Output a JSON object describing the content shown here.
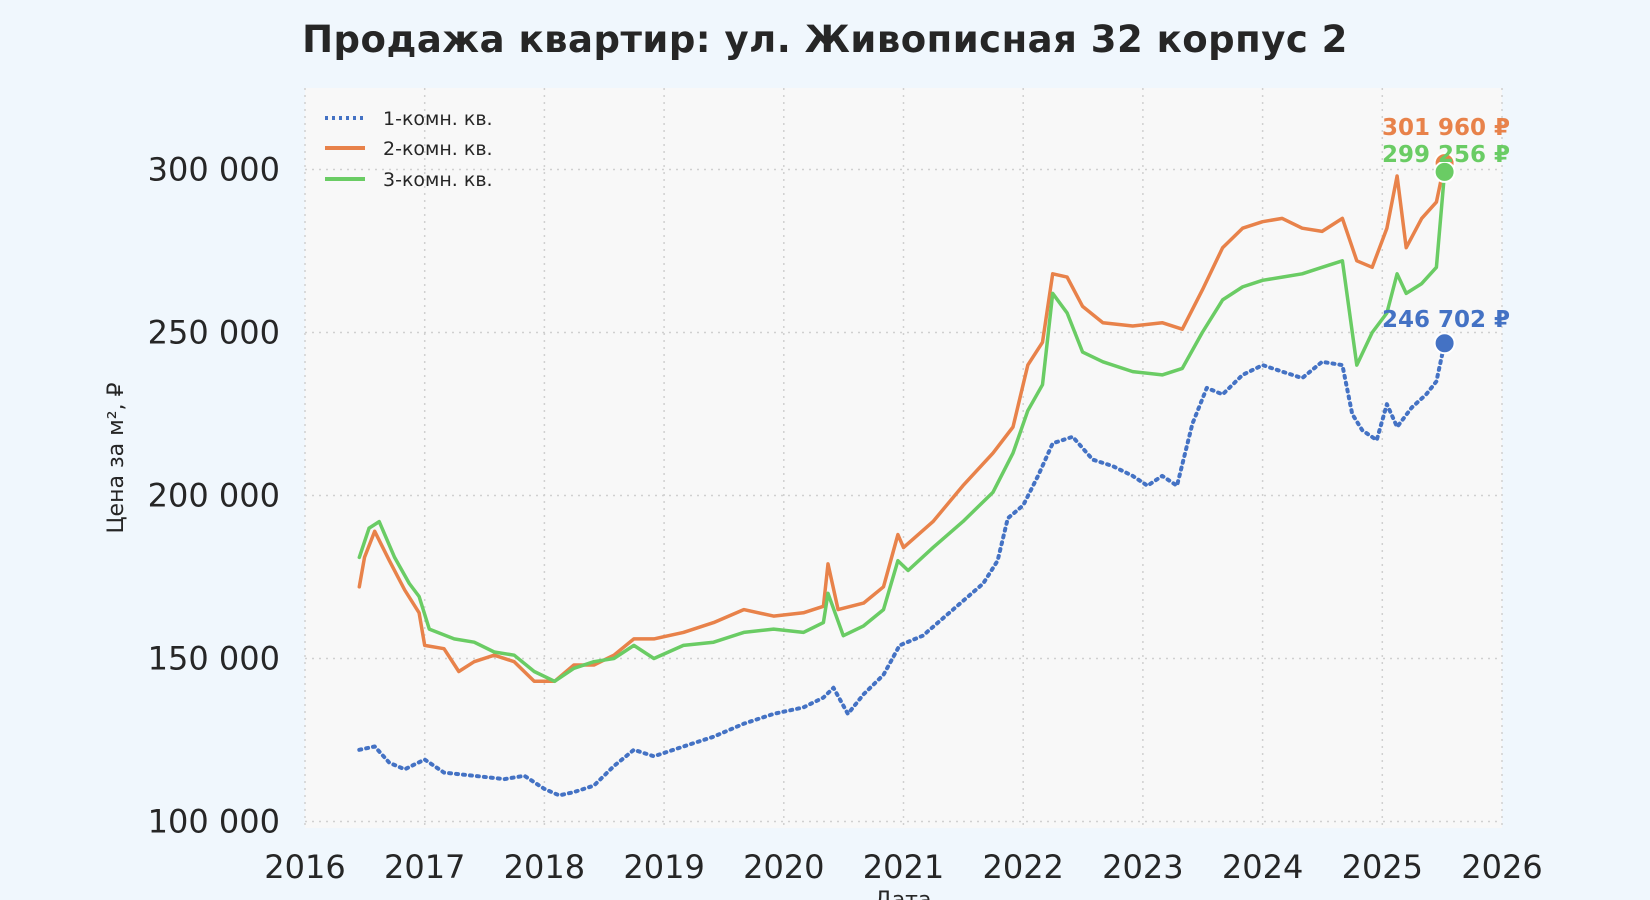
{
  "chart_data": {
    "type": "line",
    "title": "Продажа квартир: ул. Живописная 32 корпус 2",
    "xlabel": "Дата",
    "ylabel": "Цена за м², ₽",
    "x_ticks": [
      "2016",
      "2017",
      "2018",
      "2019",
      "2020",
      "2021",
      "2022",
      "2023",
      "2024",
      "2025",
      "2026"
    ],
    "y_ticks": [
      "100 000",
      "150 000",
      "200 000",
      "250 000",
      "300 000"
    ],
    "xlim": [
      "2016-01-01",
      "2026-01-01"
    ],
    "ylim": [
      98000,
      325000
    ],
    "grid": true,
    "legend_position": "top-left",
    "series": [
      {
        "name": "1-комн. кв.",
        "color": "#4472c4",
        "style": "dotted",
        "end_label": "246 702 ₽",
        "points": [
          [
            "2016-06-15",
            122000
          ],
          [
            "2016-08-01",
            123000
          ],
          [
            "2016-09-15",
            118000
          ],
          [
            "2016-11-01",
            116000
          ],
          [
            "2017-01-01",
            119000
          ],
          [
            "2017-03-01",
            115000
          ],
          [
            "2017-06-01",
            114000
          ],
          [
            "2017-09-01",
            113000
          ],
          [
            "2017-11-01",
            114000
          ],
          [
            "2018-01-01",
            110000
          ],
          [
            "2018-02-15",
            108000
          ],
          [
            "2018-04-01",
            109000
          ],
          [
            "2018-06-01",
            111000
          ],
          [
            "2018-08-01",
            117000
          ],
          [
            "2018-10-01",
            122000
          ],
          [
            "2018-12-01",
            120000
          ],
          [
            "2019-03-01",
            123000
          ],
          [
            "2019-06-01",
            126000
          ],
          [
            "2019-09-01",
            130000
          ],
          [
            "2019-12-01",
            133000
          ],
          [
            "2020-03-01",
            135000
          ],
          [
            "2020-05-01",
            138000
          ],
          [
            "2020-06-01",
            141000
          ],
          [
            "2020-07-15",
            133000
          ],
          [
            "2020-09-01",
            139000
          ],
          [
            "2020-11-01",
            145000
          ],
          [
            "2020-12-20",
            154000
          ],
          [
            "2021-03-01",
            157000
          ],
          [
            "2021-06-01",
            165000
          ],
          [
            "2021-09-01",
            173000
          ],
          [
            "2021-10-15",
            180000
          ],
          [
            "2021-11-15",
            193000
          ],
          [
            "2022-01-01",
            197000
          ],
          [
            "2022-02-15",
            206000
          ],
          [
            "2022-04-01",
            216000
          ],
          [
            "2022-06-01",
            218000
          ],
          [
            "2022-08-01",
            211000
          ],
          [
            "2022-10-01",
            209000
          ],
          [
            "2022-12-01",
            206000
          ],
          [
            "2023-01-15",
            203000
          ],
          [
            "2023-03-01",
            206000
          ],
          [
            "2023-04-15",
            203000
          ],
          [
            "2023-06-01",
            222000
          ],
          [
            "2023-07-15",
            233000
          ],
          [
            "2023-09-01",
            231000
          ],
          [
            "2023-11-01",
            237000
          ],
          [
            "2024-01-01",
            240000
          ],
          [
            "2024-03-01",
            238000
          ],
          [
            "2024-05-01",
            236000
          ],
          [
            "2024-07-01",
            241000
          ],
          [
            "2024-09-01",
            240000
          ],
          [
            "2024-10-01",
            225000
          ],
          [
            "2024-11-01",
            220000
          ],
          [
            "2024-12-15",
            217000
          ],
          [
            "2025-01-15",
            228000
          ],
          [
            "2025-02-15",
            221000
          ],
          [
            "2025-04-01",
            227000
          ],
          [
            "2025-05-15",
            231000
          ],
          [
            "2025-06-15",
            235000
          ],
          [
            "2025-07-10",
            246702
          ]
        ]
      },
      {
        "name": "2-комн. кв.",
        "color": "#e8824a",
        "style": "solid",
        "end_label": "301 960 ₽",
        "points": [
          [
            "2016-06-15",
            172000
          ],
          [
            "2016-07-01",
            181000
          ],
          [
            "2016-08-01",
            189000
          ],
          [
            "2016-09-15",
            180000
          ],
          [
            "2016-11-01",
            171000
          ],
          [
            "2016-12-15",
            164000
          ],
          [
            "2017-01-01",
            154000
          ],
          [
            "2017-03-01",
            153000
          ],
          [
            "2017-04-15",
            146000
          ],
          [
            "2017-06-01",
            149000
          ],
          [
            "2017-08-01",
            151000
          ],
          [
            "2017-10-01",
            149000
          ],
          [
            "2017-12-01",
            143000
          ],
          [
            "2018-02-01",
            143000
          ],
          [
            "2018-04-01",
            148000
          ],
          [
            "2018-06-01",
            148000
          ],
          [
            "2018-08-01",
            151000
          ],
          [
            "2018-10-01",
            156000
          ],
          [
            "2018-12-01",
            156000
          ],
          [
            "2019-03-01",
            158000
          ],
          [
            "2019-06-01",
            161000
          ],
          [
            "2019-09-01",
            165000
          ],
          [
            "2019-12-01",
            163000
          ],
          [
            "2020-03-01",
            164000
          ],
          [
            "2020-05-01",
            166000
          ],
          [
            "2020-05-15",
            179000
          ],
          [
            "2020-06-15",
            165000
          ],
          [
            "2020-09-01",
            167000
          ],
          [
            "2020-11-01",
            172000
          ],
          [
            "2020-12-15",
            188000
          ],
          [
            "2021-01-01",
            184000
          ],
          [
            "2021-04-01",
            192000
          ],
          [
            "2021-07-01",
            203000
          ],
          [
            "2021-10-01",
            213000
          ],
          [
            "2021-12-01",
            221000
          ],
          [
            "2022-01-15",
            240000
          ],
          [
            "2022-03-01",
            247000
          ],
          [
            "2022-04-01",
            268000
          ],
          [
            "2022-05-15",
            267000
          ],
          [
            "2022-07-01",
            258000
          ],
          [
            "2022-09-01",
            253000
          ],
          [
            "2022-12-01",
            252000
          ],
          [
            "2023-03-01",
            253000
          ],
          [
            "2023-05-01",
            251000
          ],
          [
            "2023-07-01",
            263000
          ],
          [
            "2023-09-01",
            276000
          ],
          [
            "2023-11-01",
            282000
          ],
          [
            "2024-01-01",
            284000
          ],
          [
            "2024-03-01",
            285000
          ],
          [
            "2024-05-01",
            282000
          ],
          [
            "2024-07-01",
            281000
          ],
          [
            "2024-09-01",
            285000
          ],
          [
            "2024-10-15",
            272000
          ],
          [
            "2024-12-01",
            270000
          ],
          [
            "2025-01-15",
            282000
          ],
          [
            "2025-02-15",
            298000
          ],
          [
            "2025-03-15",
            276000
          ],
          [
            "2025-05-01",
            285000
          ],
          [
            "2025-06-15",
            290000
          ],
          [
            "2025-07-10",
            301960
          ]
        ]
      },
      {
        "name": "3-комн. кв.",
        "color": "#6acc64",
        "style": "solid",
        "end_label": "299 256 ₽",
        "points": [
          [
            "2016-06-15",
            181000
          ],
          [
            "2016-07-15",
            190000
          ],
          [
            "2016-08-15",
            192000
          ],
          [
            "2016-10-01",
            181000
          ],
          [
            "2016-11-15",
            173000
          ],
          [
            "2016-12-15",
            169000
          ],
          [
            "2017-01-15",
            159000
          ],
          [
            "2017-04-01",
            156000
          ],
          [
            "2017-06-01",
            155000
          ],
          [
            "2017-08-01",
            152000
          ],
          [
            "2017-10-01",
            151000
          ],
          [
            "2017-12-01",
            146000
          ],
          [
            "2018-02-01",
            143000
          ],
          [
            "2018-04-01",
            147000
          ],
          [
            "2018-06-01",
            149000
          ],
          [
            "2018-08-01",
            150000
          ],
          [
            "2018-10-01",
            154000
          ],
          [
            "2018-12-01",
            150000
          ],
          [
            "2019-03-01",
            154000
          ],
          [
            "2019-06-01",
            155000
          ],
          [
            "2019-09-01",
            158000
          ],
          [
            "2019-12-01",
            159000
          ],
          [
            "2020-03-01",
            158000
          ],
          [
            "2020-05-01",
            161000
          ],
          [
            "2020-05-15",
            170000
          ],
          [
            "2020-07-01",
            157000
          ],
          [
            "2020-09-01",
            160000
          ],
          [
            "2020-11-01",
            165000
          ],
          [
            "2020-12-15",
            180000
          ],
          [
            "2021-01-15",
            177000
          ],
          [
            "2021-04-01",
            184000
          ],
          [
            "2021-07-01",
            192000
          ],
          [
            "2021-10-01",
            201000
          ],
          [
            "2021-12-01",
            213000
          ],
          [
            "2022-01-15",
            226000
          ],
          [
            "2022-03-01",
            234000
          ],
          [
            "2022-04-01",
            262000
          ],
          [
            "2022-05-15",
            256000
          ],
          [
            "2022-07-01",
            244000
          ],
          [
            "2022-09-01",
            241000
          ],
          [
            "2022-12-01",
            238000
          ],
          [
            "2023-03-01",
            237000
          ],
          [
            "2023-05-01",
            239000
          ],
          [
            "2023-07-01",
            250000
          ],
          [
            "2023-09-01",
            260000
          ],
          [
            "2023-11-01",
            264000
          ],
          [
            "2024-01-01",
            266000
          ],
          [
            "2024-03-01",
            267000
          ],
          [
            "2024-05-01",
            268000
          ],
          [
            "2024-07-01",
            270000
          ],
          [
            "2024-09-01",
            272000
          ],
          [
            "2024-10-15",
            240000
          ],
          [
            "2024-12-01",
            250000
          ],
          [
            "2025-01-15",
            256000
          ],
          [
            "2025-02-15",
            268000
          ],
          [
            "2025-03-15",
            262000
          ],
          [
            "2025-05-01",
            265000
          ],
          [
            "2025-06-15",
            270000
          ],
          [
            "2025-07-10",
            299256
          ]
        ]
      }
    ]
  }
}
